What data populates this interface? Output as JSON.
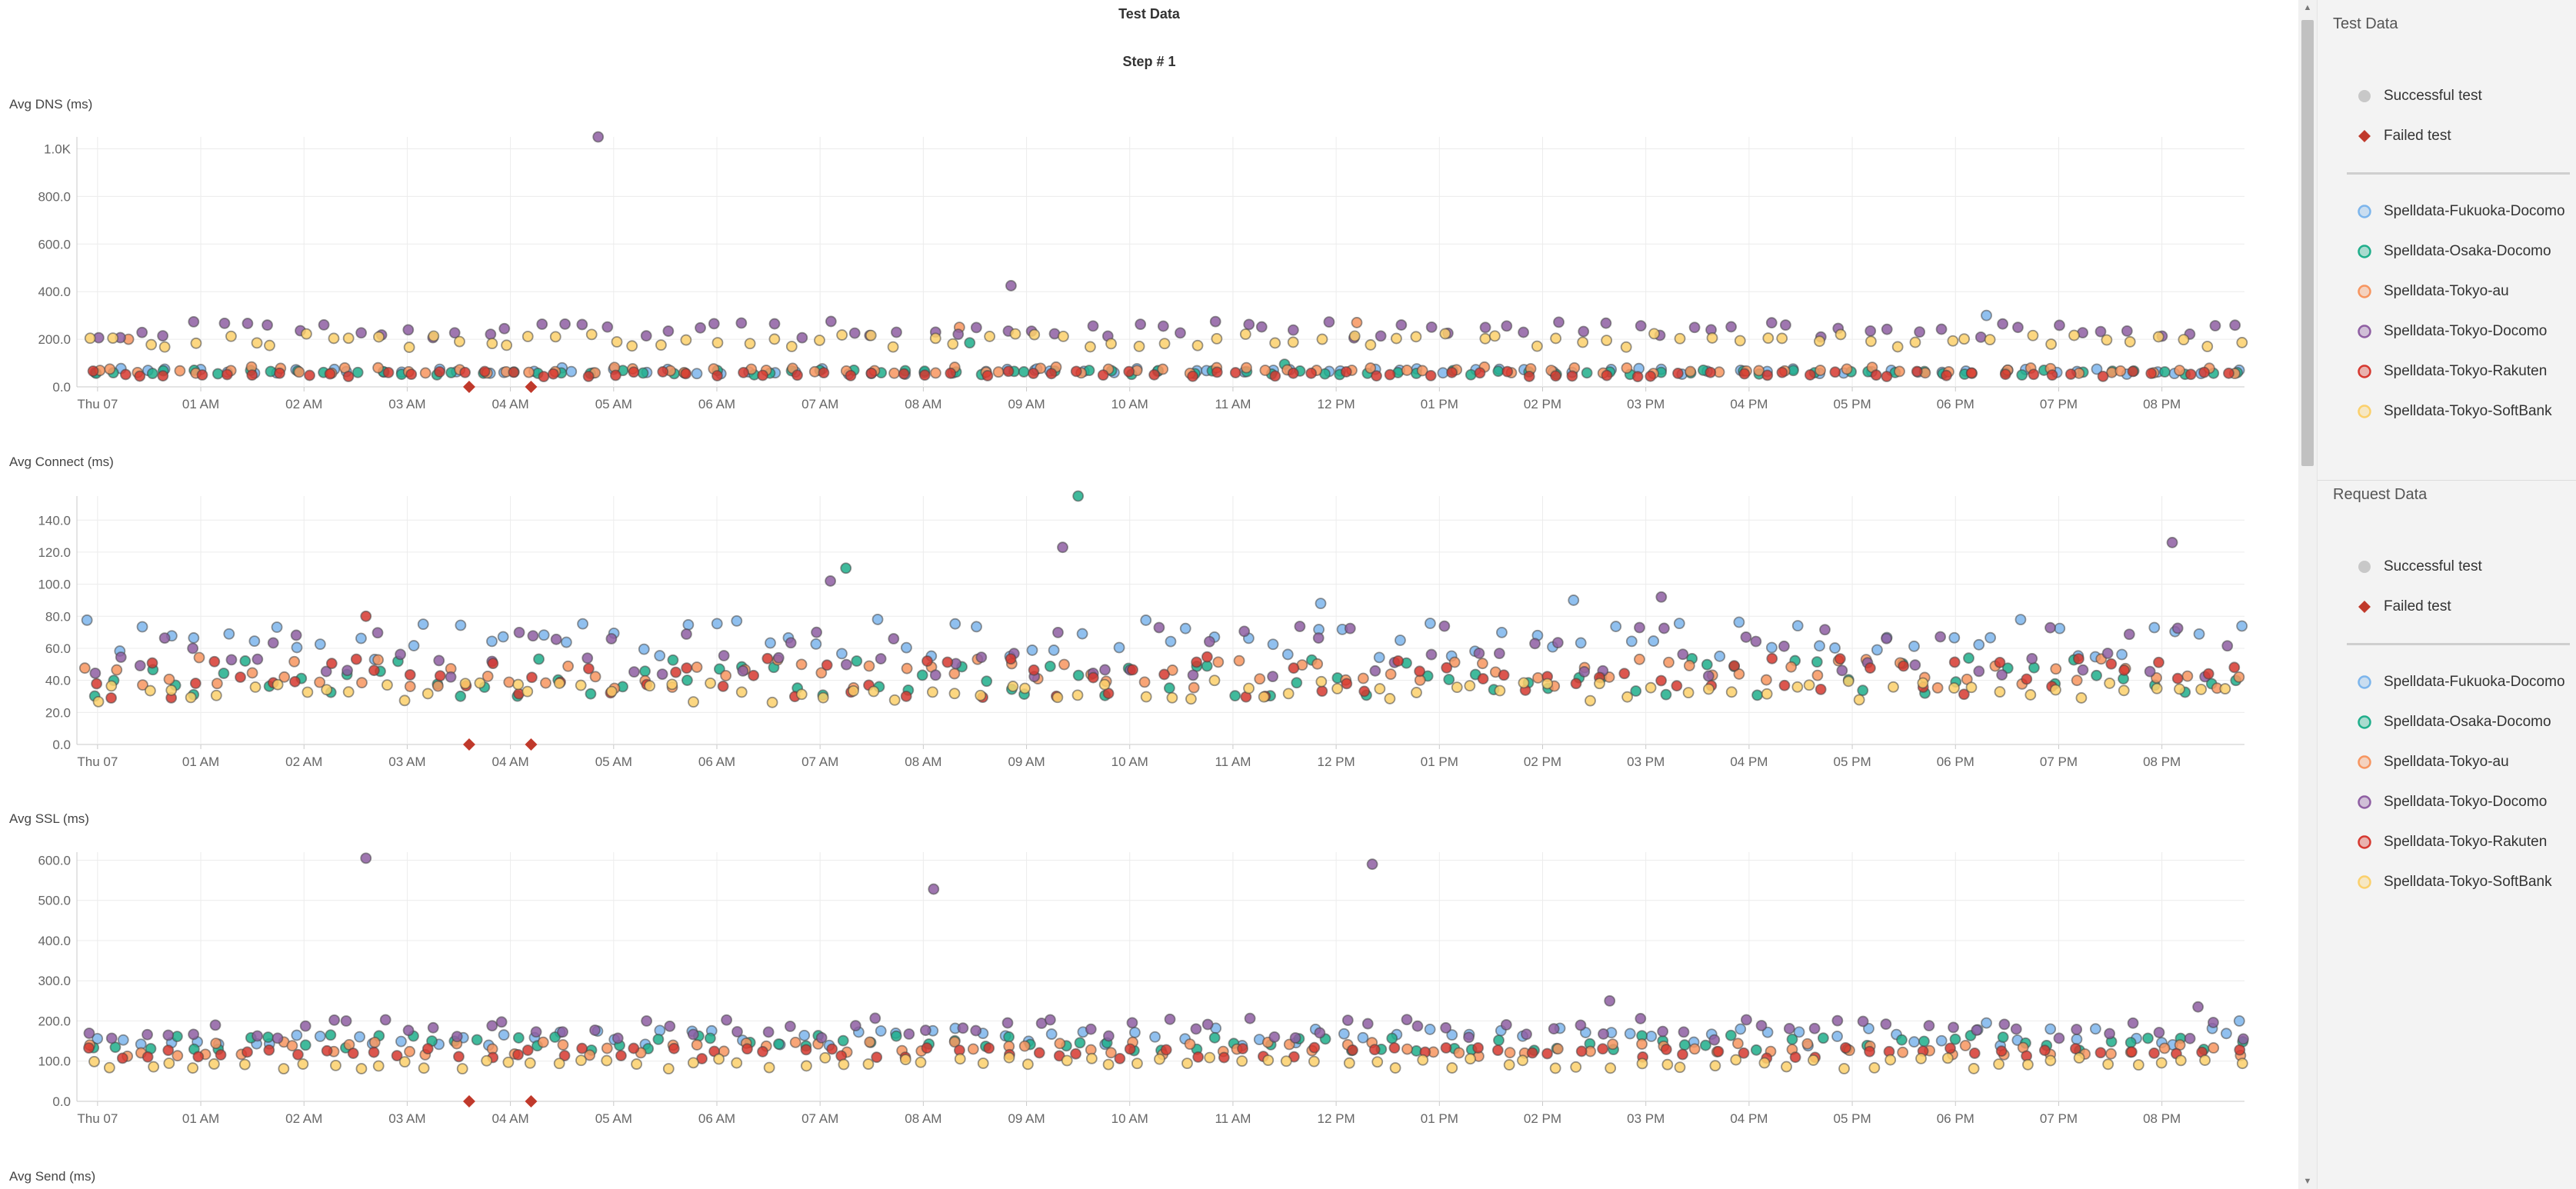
{
  "page": {
    "title": "Test Data",
    "step_label": "Step # 1"
  },
  "series_colors": {
    "Spelldata-Fukuoka-Docomo": "#7cb5ec",
    "Spelldata-Osaka-Docomo": "#1fae8b",
    "Spelldata-Tokyo-au": "#f7955f",
    "Spelldata-Tokyo-Docomo": "#8e5ea2",
    "Spelldata-Tokyo-Rakuten": "#d6382f",
    "Spelldata-Tokyo-SoftBank": "#fbd06b"
  },
  "status_colors": {
    "successful": "#c8c8c8",
    "failed": "#c0392b"
  },
  "x_axis": {
    "labels": [
      "Thu 07",
      "01 AM",
      "02 AM",
      "03 AM",
      "04 AM",
      "05 AM",
      "06 AM",
      "07 AM",
      "08 AM",
      "09 AM",
      "10 AM",
      "11 AM",
      "12 PM",
      "01 PM",
      "02 PM",
      "03 PM",
      "04 PM",
      "05 PM",
      "06 PM",
      "07 PM",
      "08 PM"
    ],
    "hours": [
      0,
      1,
      2,
      3,
      4,
      5,
      6,
      7,
      8,
      9,
      10,
      11,
      12,
      13,
      14,
      15,
      16,
      17,
      18,
      19,
      20
    ],
    "range_hours": [
      -0.2,
      20.8
    ]
  },
  "chart_data": [
    {
      "type": "scatter",
      "title": "Avg DNS (ms)",
      "x_unit": "hours after Thu 07 00:00",
      "y_ticks": [
        "0.0",
        "200.0",
        "400.0",
        "600.0",
        "800.0",
        "1.0K"
      ],
      "ylim": [
        0,
        1050
      ],
      "grid": true,
      "legend": "right",
      "series": [
        {
          "name": "Spelldata-Fukuoka-Docomo",
          "level": 65,
          "jitter": 12,
          "outliers": [
            [
              4.5,
              80
            ],
            [
              9.1,
              75
            ],
            [
              18.3,
              300
            ]
          ]
        },
        {
          "name": "Spelldata-Osaka-Docomo",
          "level": 60,
          "jitter": 10,
          "outliers": [
            [
              8.45,
              185
            ],
            [
              11.5,
              95
            ]
          ]
        },
        {
          "name": "Spelldata-Tokyo-au",
          "level": 70,
          "jitter": 14,
          "outliers": [
            [
              0.3,
              200
            ],
            [
              12.2,
              270
            ],
            [
              8.35,
              250
            ]
          ]
        },
        {
          "name": "Spelldata-Tokyo-Docomo",
          "level": 240,
          "jitter": 35,
          "outliers": [
            [
              4.85,
              1050
            ],
            [
              8.85,
              425
            ]
          ]
        },
        {
          "name": "Spelldata-Tokyo-Rakuten",
          "level": 55,
          "jitter": 12,
          "outliers": []
        },
        {
          "name": "Spelldata-Tokyo-SoftBank",
          "level": 195,
          "jitter": 30,
          "outliers": []
        }
      ],
      "failed": [
        [
          3.6,
          0
        ],
        [
          4.2,
          0
        ]
      ]
    },
    {
      "type": "scatter",
      "title": "Avg Connect (ms)",
      "x_unit": "hours after Thu 07 00:00",
      "y_ticks": [
        "0.0",
        "20.0",
        "40.0",
        "60.0",
        "80.0",
        "100.0",
        "120.0",
        "140.0"
      ],
      "ylim": [
        0,
        155
      ],
      "grid": true,
      "legend": "right",
      "series": [
        {
          "name": "Spelldata-Fukuoka-Docomo",
          "level": 66,
          "jitter": 13,
          "outliers": [
            [
              11.85,
              88
            ],
            [
              14.3,
              90
            ]
          ]
        },
        {
          "name": "Spelldata-Osaka-Docomo",
          "level": 42,
          "jitter": 12,
          "outliers": [
            [
              9.5,
              155
            ],
            [
              7.25,
              110
            ]
          ]
        },
        {
          "name": "Spelldata-Tokyo-au",
          "level": 45,
          "jitter": 10,
          "outliers": []
        },
        {
          "name": "Spelldata-Tokyo-Docomo",
          "level": 58,
          "jitter": 16,
          "outliers": [
            [
              9.35,
              123
            ],
            [
              7.1,
              102
            ],
            [
              20.1,
              126
            ],
            [
              15.15,
              92
            ]
          ]
        },
        {
          "name": "Spelldata-Tokyo-Rakuten",
          "level": 42,
          "jitter": 13,
          "outliers": [
            [
              2.6,
              80
            ]
          ]
        },
        {
          "name": "Spelldata-Tokyo-SoftBank",
          "level": 33,
          "jitter": 7,
          "outliers": []
        }
      ],
      "failed": [
        [
          3.6,
          0
        ],
        [
          4.2,
          0
        ]
      ]
    },
    {
      "type": "scatter",
      "title": "Avg SSL (ms)",
      "x_unit": "hours after Thu 07 00:00",
      "y_ticks": [
        "0.0",
        "100.0",
        "200.0",
        "300.0",
        "400.0",
        "500.0",
        "600.0"
      ],
      "ylim": [
        0,
        620
      ],
      "grid": true,
      "legend": "right",
      "series": [
        {
          "name": "Spelldata-Fukuoka-Docomo",
          "level": 160,
          "jitter": 22,
          "outliers": [
            [
              20.75,
              200
            ],
            [
              18.3,
              195
            ]
          ]
        },
        {
          "name": "Spelldata-Osaka-Docomo",
          "level": 145,
          "jitter": 20,
          "outliers": []
        },
        {
          "name": "Spelldata-Tokyo-au",
          "level": 130,
          "jitter": 18,
          "outliers": []
        },
        {
          "name": "Spelldata-Tokyo-Docomo",
          "level": 180,
          "jitter": 28,
          "outliers": [
            [
              2.6,
              605
            ],
            [
              8.1,
              528
            ],
            [
              12.35,
              590
            ],
            [
              14.65,
              250
            ],
            [
              20.35,
              235
            ]
          ]
        },
        {
          "name": "Spelldata-Tokyo-Rakuten",
          "level": 120,
          "jitter": 14,
          "outliers": []
        },
        {
          "name": "Spelldata-Tokyo-SoftBank",
          "level": 95,
          "jitter": 14,
          "outliers": []
        }
      ],
      "failed": [
        [
          3.6,
          0
        ],
        [
          4.2,
          0
        ]
      ]
    }
  ],
  "next_chart_title": "Avg Send (ms)",
  "sidebar": {
    "panels": [
      {
        "title": "Test Data",
        "status_items": [
          {
            "label": "Successful test",
            "kind": "circle"
          },
          {
            "label": "Failed test",
            "kind": "diamond"
          }
        ],
        "series_items": [
          {
            "label": "Spelldata-Fukuoka-Docomo"
          },
          {
            "label": "Spelldata-Osaka-Docomo"
          },
          {
            "label": "Spelldata-Tokyo-au"
          },
          {
            "label": "Spelldata-Tokyo-Docomo"
          },
          {
            "label": "Spelldata-Tokyo-Rakuten"
          },
          {
            "label": "Spelldata-Tokyo-SoftBank"
          }
        ]
      },
      {
        "title": "Request Data",
        "status_items": [
          {
            "label": "Successful test",
            "kind": "circle"
          },
          {
            "label": "Failed test",
            "kind": "diamond"
          }
        ],
        "series_items": [
          {
            "label": "Spelldata-Fukuoka-Docomo"
          },
          {
            "label": "Spelldata-Osaka-Docomo"
          },
          {
            "label": "Spelldata-Tokyo-au"
          },
          {
            "label": "Spelldata-Tokyo-Docomo"
          },
          {
            "label": "Spelldata-Tokyo-Rakuten"
          },
          {
            "label": "Spelldata-Tokyo-SoftBank"
          }
        ]
      }
    ]
  }
}
